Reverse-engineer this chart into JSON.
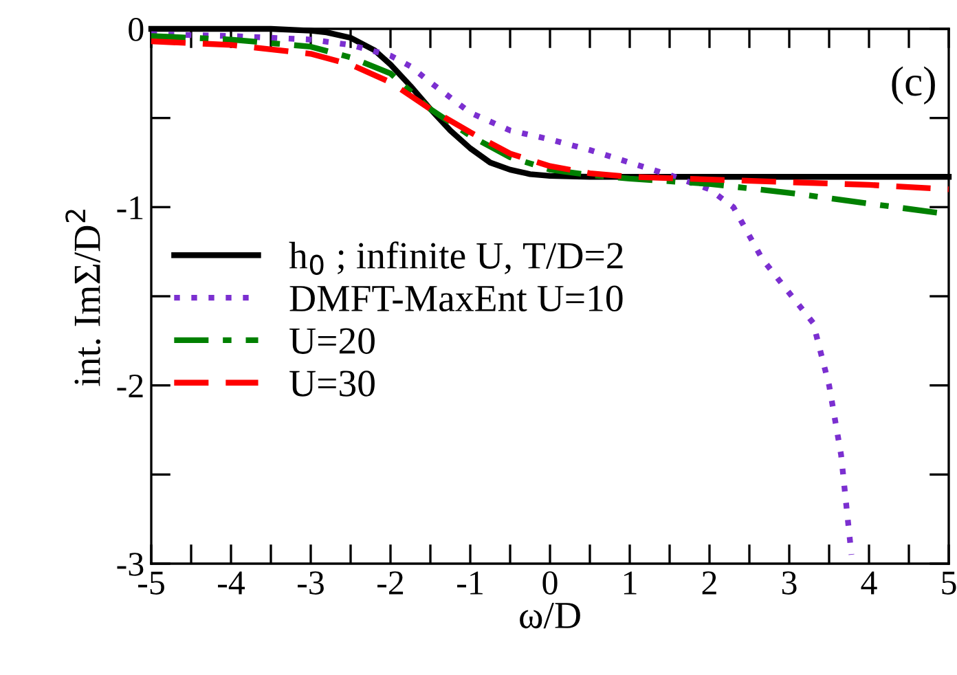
{
  "chart_data": {
    "type": "line",
    "xlabel": "ω/D",
    "ylabel": "int. ImΣ/D$^{2}$",
    "annotations": [
      "(c)"
    ],
    "xlim": [
      -5,
      5
    ],
    "ylim": [
      -3,
      0
    ],
    "xticks": [
      -5,
      {
        "value": -4.5,
        "label": null
      },
      -4,
      {
        "value": -3.5,
        "label": null
      },
      -3,
      {
        "value": -2.5,
        "label": null
      },
      -2,
      {
        "value": -1.5,
        "label": null
      },
      -1,
      {
        "value": -0.5,
        "label": null
      },
      0,
      {
        "value": 0.5,
        "label": null
      },
      1,
      {
        "value": 1.5,
        "label": null
      },
      2,
      {
        "value": 2.5,
        "label": null
      },
      3,
      {
        "value": 3.5,
        "label": null
      },
      4,
      {
        "value": 4.5,
        "label": null
      },
      5
    ],
    "yticks": [
      -3,
      {
        "value": -2.5,
        "label": null
      },
      -2,
      {
        "value": -1.5,
        "label": null
      },
      -1,
      {
        "value": -0.5,
        "label": null
      },
      0
    ],
    "grid": false,
    "legend": "left",
    "marker": "none",
    "series": [
      {
        "name": "h$_{0}$ ; infinite U, T/D=2",
        "color": "#000000",
        "line_style": "solid",
        "x": [
          -5,
          -3.5,
          -3,
          -2.8,
          -2.5,
          -2.2,
          -2,
          -1.75,
          -1.5,
          -1.25,
          -1,
          -0.75,
          -0.5,
          -0.25,
          0,
          0.5,
          1,
          2,
          3,
          4,
          5
        ],
        "values": [
          0,
          0,
          -0.01,
          -0.02,
          -0.05,
          -0.12,
          -0.2,
          -0.32,
          -0.45,
          -0.57,
          -0.67,
          -0.75,
          -0.79,
          -0.815,
          -0.825,
          -0.83,
          -0.83,
          -0.83,
          -0.83,
          -0.83,
          -0.83
        ]
      },
      {
        "name": "DMFT-MaxEnt U=10",
        "color": "#7b2fd0",
        "line_style": "dotted",
        "x": [
          -5,
          -4,
          -3,
          -2.5,
          -2,
          -1.75,
          -1.5,
          -1,
          -0.5,
          0,
          0.5,
          1,
          1.5,
          2,
          2.3,
          2.45,
          2.66,
          3.3,
          3.5,
          3.65,
          3.78
        ],
        "values": [
          -0.03,
          -0.04,
          -0.06,
          -0.09,
          -0.15,
          -0.21,
          -0.3,
          -0.47,
          -0.57,
          -0.62,
          -0.68,
          -0.75,
          -0.82,
          -0.9,
          -1.0,
          -1.12,
          -1.29,
          -1.65,
          -2.0,
          -2.39,
          -2.95
        ]
      },
      {
        "name": "U=20",
        "color": "#008000",
        "line_style": "dashdot",
        "x": [
          -5,
          -4,
          -3,
          -2.5,
          -2,
          -1.5,
          -1,
          -0.5,
          0,
          0.5,
          1,
          2,
          3,
          4,
          5
        ],
        "values": [
          -0.04,
          -0.06,
          -0.1,
          -0.16,
          -0.25,
          -0.45,
          -0.6,
          -0.72,
          -0.79,
          -0.82,
          -0.84,
          -0.87,
          -0.92,
          -0.98,
          -1.04
        ]
      },
      {
        "name": "U=30",
        "color": "#ff0000",
        "line_style": "dashed",
        "x": [
          -5,
          -4,
          -3,
          -2.5,
          -2,
          -1.5,
          -1,
          -0.5,
          0,
          0.5,
          1,
          2,
          3,
          4,
          5
        ],
        "values": [
          -0.07,
          -0.09,
          -0.14,
          -0.2,
          -0.3,
          -0.45,
          -0.58,
          -0.7,
          -0.77,
          -0.81,
          -0.83,
          -0.845,
          -0.86,
          -0.875,
          -0.9
        ]
      }
    ]
  }
}
